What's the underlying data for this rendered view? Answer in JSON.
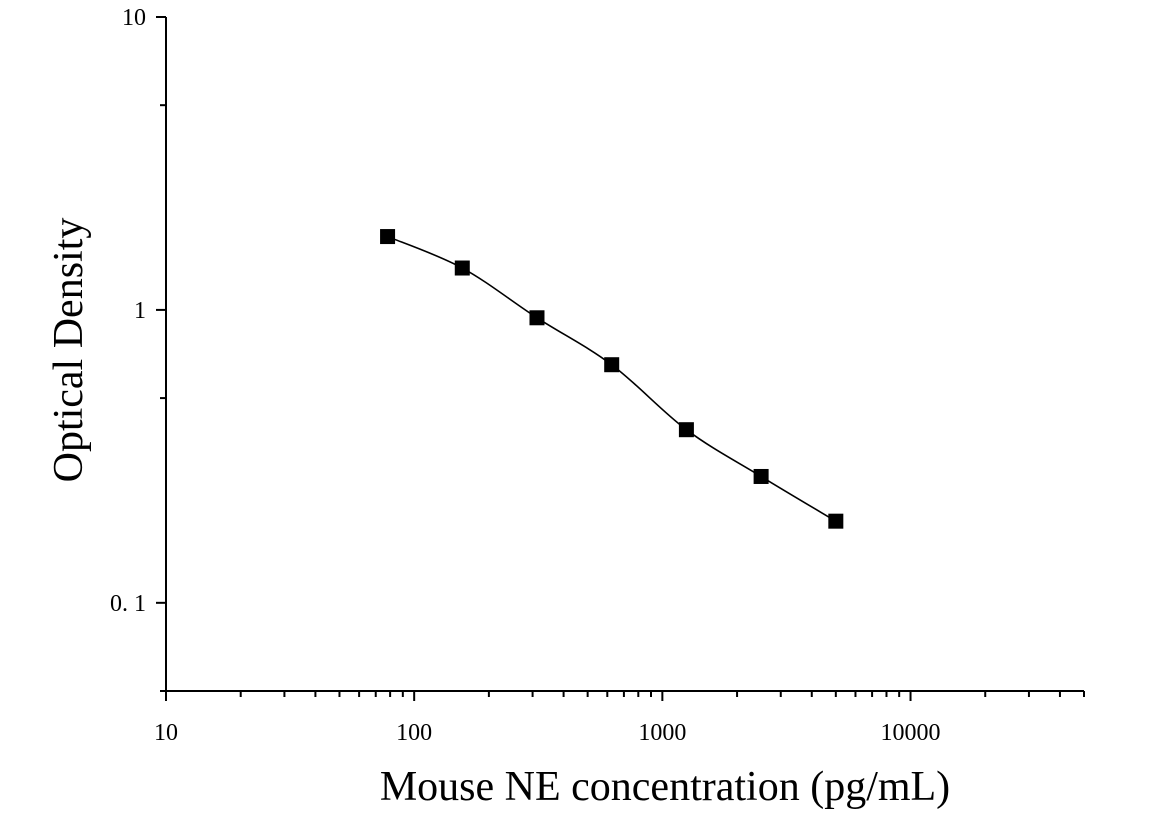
{
  "chart_data": {
    "type": "scatter",
    "title": "",
    "xlabel": "Mouse NE concentration (pg/mL)",
    "ylabel": "Optical Density",
    "xscale": "log",
    "yscale": "log",
    "xlim": [
      10,
      50000
    ],
    "ylim": [
      0.05,
      10
    ],
    "x_tick_labels": [
      "10",
      "100",
      "1000",
      "10000"
    ],
    "y_tick_labels": [
      "0. 1",
      "1",
      "10"
    ],
    "grid": false,
    "legend": "none",
    "series": [
      {
        "x": [
          78.125,
          156.25,
          312.5,
          625,
          1250,
          2500,
          5000
        ],
        "y": [
          1.78,
          1.39,
          0.94,
          0.65,
          0.39,
          0.27,
          0.19
        ],
        "marker": "square",
        "fit_curve": true
      }
    ]
  }
}
